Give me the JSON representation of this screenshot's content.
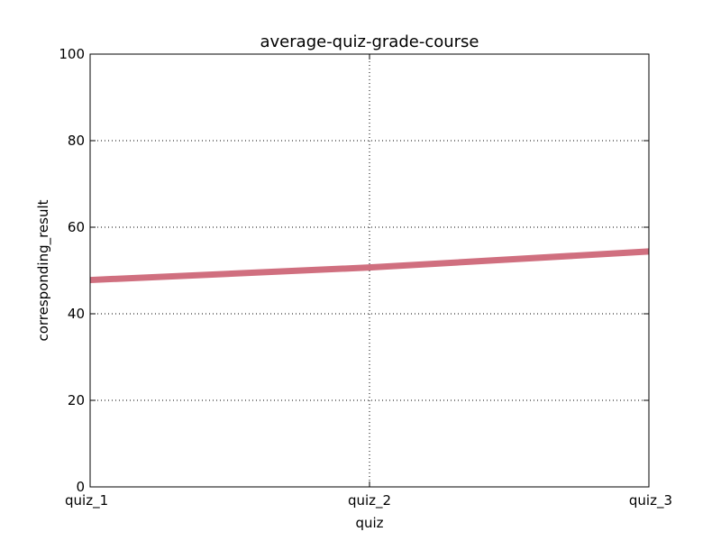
{
  "chart_data": {
    "type": "line",
    "title": "average-quiz-grade-course",
    "xlabel": "quiz",
    "ylabel": "corresponding_result",
    "categories": [
      "quiz_1",
      "quiz_2",
      "quiz_3"
    ],
    "series": [
      {
        "values": [
          47.8,
          50.7,
          54.4
        ],
        "color": "#d06f7f"
      }
    ],
    "ylim": [
      0,
      100
    ],
    "yticks": [
      0,
      20,
      40,
      60,
      80,
      100
    ],
    "grid": true,
    "grid_style": "dotted"
  }
}
